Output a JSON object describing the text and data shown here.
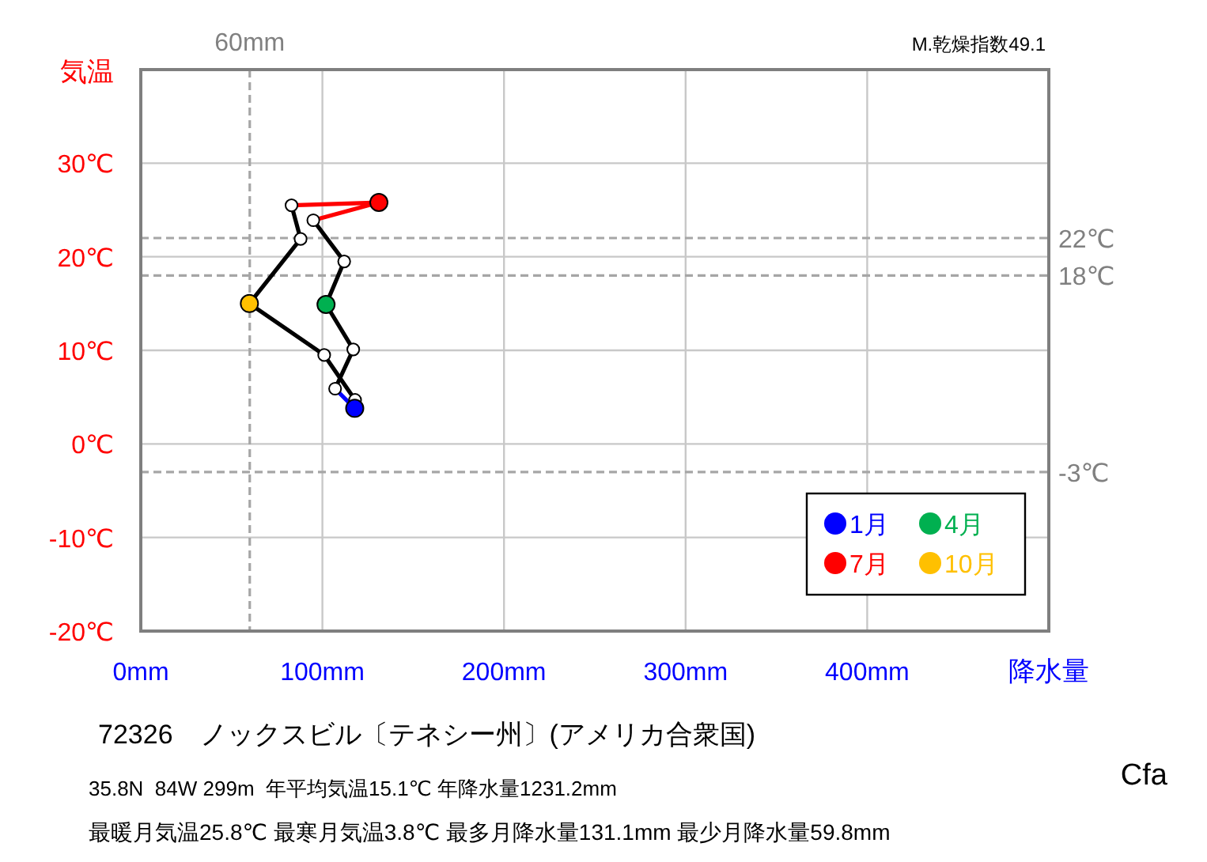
{
  "chart_data": {
    "type": "line",
    "title": "72326　ノックスビル〔テネシー州〕(アメリカ合衆国)",
    "xlabel": "降水量",
    "ylabel": "気温",
    "annotations": [
      "M.乾燥指数49.1",
      "35.8N  84W 299m  年平均気温15.1℃ 年降水量1231.2mm",
      "最暖月気温25.8℃ 最寒月気温3.8℃ 最多月降水量131.1mm 最少月降水量59.8mm",
      "Cfa"
    ],
    "xlim": [
      0,
      500
    ],
    "xticks": [
      {
        "value": 0,
        "label": "0mm"
      },
      {
        "value": 100,
        "label": "100mm"
      },
      {
        "value": 200,
        "label": "200mm"
      },
      {
        "value": 300,
        "label": "300mm"
      },
      {
        "value": 400,
        "label": "400mm"
      }
    ],
    "ylim": [
      -20,
      40
    ],
    "yticks": [
      {
        "value": -20,
        "label": "-20℃"
      },
      {
        "value": -10,
        "label": "-10℃"
      },
      {
        "value": 0,
        "label": "0℃"
      },
      {
        "value": 10,
        "label": "10℃"
      },
      {
        "value": 20,
        "label": "20℃"
      },
      {
        "value": 30,
        "label": "30℃"
      }
    ],
    "grid": true,
    "legend": "bottom right",
    "ref_lines": [
      {
        "axis": "x",
        "value": 60,
        "label": "60mm",
        "color": "#a6a6a6",
        "line_style": "dashed"
      },
      {
        "axis": "y",
        "value": 22,
        "label": "22℃",
        "color": "#a6a6a6",
        "line_style": "dashed"
      },
      {
        "axis": "y",
        "value": 18,
        "label": "18℃",
        "color": "#a6a6a6",
        "line_style": "dashed"
      },
      {
        "axis": "y",
        "value": -3,
        "label": "-3℃",
        "color": "#a6a6a6",
        "line_style": "dashed"
      }
    ],
    "series": [
      {
        "color": "#000000",
        "line_style": "solid",
        "x": [
          107,
          117,
          102,
          112,
          95
        ],
        "values": [
          5.9,
          10.1,
          14.9,
          19.5,
          23.9
        ]
      },
      {
        "color": "#ff0000",
        "line_style": "solid",
        "x": [
          95,
          131.1,
          83
        ],
        "values": [
          23.9,
          25.8,
          25.5
        ]
      },
      {
        "color": "#000000",
        "line_style": "solid",
        "x": [
          83,
          88,
          59.8,
          101,
          118
        ],
        "values": [
          25.5,
          21.9,
          15.0,
          9.5,
          4.7
        ]
      },
      {
        "color": "#0000ff",
        "line_style": "solid",
        "x": [
          118,
          117.8,
          107
        ],
        "values": [
          4.7,
          3.8,
          5.9
        ]
      },
      {
        "type": "scatter",
        "color": "#ffffff",
        "marker": "circle",
        "x": [
          107,
          117,
          112,
          95,
          83,
          88,
          101,
          118
        ],
        "values": [
          5.9,
          10.1,
          19.5,
          23.9,
          25.5,
          21.9,
          9.5,
          4.7
        ]
      },
      {
        "type": "scatter",
        "name": "1月",
        "color": "#0000ff",
        "marker": "circle",
        "x": [
          117.8
        ],
        "values": [
          3.8
        ]
      },
      {
        "type": "scatter",
        "name": "4月",
        "color": "#00b050",
        "marker": "circle",
        "x": [
          102
        ],
        "values": [
          14.9
        ]
      },
      {
        "type": "scatter",
        "name": "7月",
        "color": "#ff0000",
        "marker": "circle",
        "x": [
          131.1
        ],
        "values": [
          25.8
        ]
      },
      {
        "type": "scatter",
        "name": "10月",
        "color": "#ffc000",
        "marker": "circle",
        "x": [
          59.8
        ],
        "values": [
          15.0
        ]
      }
    ]
  }
}
